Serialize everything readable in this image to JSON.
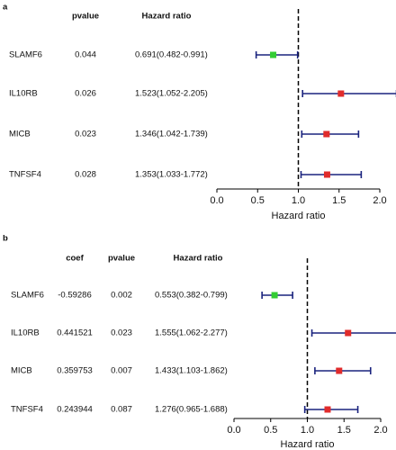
{
  "chart_data": [
    {
      "type": "forest",
      "panel": "a",
      "categories": [
        "SLAMF6",
        "IL10RB",
        "MICB",
        "TNFSF4"
      ],
      "columns": [
        {
          "header": "pvalue",
          "values": [
            0.044,
            0.026,
            0.023,
            0.028
          ]
        },
        {
          "header": "Hazard ratio",
          "values": [
            "0.691(0.482-0.991)",
            "1.523(1.052-2.205)",
            "1.346(1.042-1.739)",
            "1.353(1.033-1.772)"
          ]
        }
      ],
      "values": [
        0.691,
        1.523,
        1.346,
        1.353
      ],
      "lower": [
        0.482,
        1.052,
        1.042,
        1.033
      ],
      "upper": [
        0.991,
        2.205,
        1.739,
        1.772
      ],
      "colors": [
        "#33cc33",
        "#e02b2b",
        "#e02b2b",
        "#e02b2b"
      ],
      "ci_color": "#1a237e",
      "reference": 1,
      "xlim": [
        0,
        2
      ],
      "xticks": [
        {
          "value": 0,
          "label": "0.0"
        },
        0.5,
        {
          "value": 1,
          "label": "1.0"
        },
        1.5,
        {
          "value": 2,
          "label": "2.0"
        }
      ],
      "xlabel": "Hazard ratio"
    },
    {
      "type": "forest",
      "panel": "b",
      "categories": [
        "SLAMF6",
        "IL10RB",
        "MICB",
        "TNFSF4"
      ],
      "columns": [
        {
          "header": "coef",
          "values": [
            -0.59286,
            0.441521,
            0.359753,
            0.243944
          ]
        },
        {
          "header": "pvalue",
          "values": [
            0.002,
            0.023,
            0.007,
            0.087
          ]
        },
        {
          "header": "Hazard ratio",
          "values": [
            "0.553(0.382-0.799)",
            "1.555(1.062-2.277)",
            "1.433(1.103-1.862)",
            "1.276(0.965-1.688)"
          ]
        }
      ],
      "values": [
        0.553,
        1.555,
        1.433,
        1.276
      ],
      "lower": [
        0.382,
        1.062,
        1.103,
        0.965
      ],
      "upper": [
        0.799,
        2.277,
        1.862,
        1.688
      ],
      "colors": [
        "#33cc33",
        "#e02b2b",
        "#e02b2b",
        "#e02b2b"
      ],
      "ci_color": "#1a237e",
      "reference": 1,
      "xlim": [
        0,
        2
      ],
      "xticks": [
        {
          "value": 0,
          "label": "0.0"
        },
        0.5,
        {
          "value": 1,
          "label": "1.0"
        },
        1.5,
        {
          "value": 2,
          "label": "2.0"
        }
      ],
      "xlabel": "Hazard ratio"
    }
  ]
}
